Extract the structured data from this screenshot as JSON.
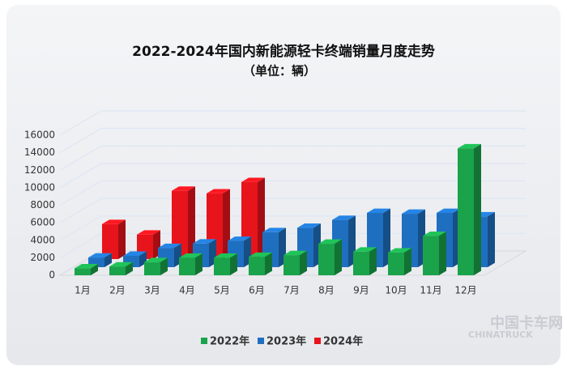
{
  "chart_data": {
    "type": "bar3d",
    "title": "2022-2024年国内新能源轻卡终端销量月度走势",
    "subtitle": "（单位：辆）",
    "categories": [
      "1月",
      "2月",
      "3月",
      "4月",
      "5月",
      "6月",
      "7月",
      "8月",
      "9月",
      "10月",
      "11月",
      "12月"
    ],
    "series": [
      {
        "name": "2022年",
        "color": "#1aa34a",
        "values": [
          800,
          1000,
          1500,
          2000,
          2000,
          2100,
          2300,
          3600,
          2700,
          2600,
          4500,
          14500
        ]
      },
      {
        "name": "2023年",
        "color": "#1f6fc0",
        "values": [
          1100,
          1300,
          2200,
          2700,
          3000,
          4000,
          4500,
          5400,
          6200,
          6100,
          6200,
          5800
        ]
      },
      {
        "name": "2024年",
        "color": "#e8141c",
        "values": [
          4000,
          2800,
          7800,
          7500,
          8800,
          null,
          null,
          null,
          null,
          null,
          null,
          null
        ]
      }
    ],
    "ylim": [
      0,
      16000
    ],
    "yticks": [
      0,
      2000,
      4000,
      6000,
      8000,
      10000,
      12000,
      14000,
      16000
    ],
    "grid": true,
    "legend": "bottom",
    "watermark": [
      "中国卡车网",
      "CHINATRUCK"
    ]
  }
}
